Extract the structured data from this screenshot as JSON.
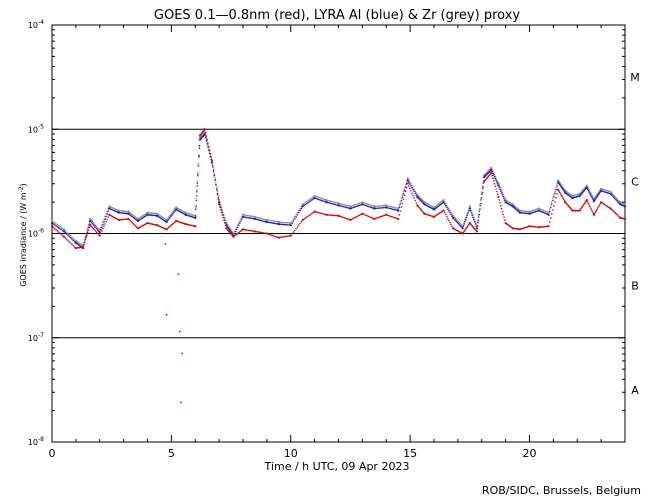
{
  "chart_data": {
    "type": "scatter",
    "title": "GOES 0.1—0.8nm (red), LYRA Al (blue) & Zr (grey) proxy",
    "xlabel": "Time / h UTC, 09 Apr 2023",
    "ylabel_parts": [
      "GOES irradiance / (W m",
      "-2",
      ")"
    ],
    "credit": "ROB/SIDC, Brussels, Belgium",
    "xlim": [
      0,
      24
    ],
    "ylim_log10": [
      -8,
      -4
    ],
    "x_ticks": [
      {
        "value": 0,
        "label": "0"
      },
      {
        "value": 5,
        "label": "5"
      },
      {
        "value": 10,
        "label": "10"
      },
      {
        "value": 15,
        "label": "15"
      },
      {
        "value": 20,
        "label": "20"
      }
    ],
    "y_ticks": [
      {
        "exp": -8,
        "base": "10",
        "sup": "-8"
      },
      {
        "exp": -7,
        "base": "10",
        "sup": "-7"
      },
      {
        "exp": -6,
        "base": "10",
        "sup": "-6"
      },
      {
        "exp": -5,
        "base": "10",
        "sup": "-5"
      },
      {
        "exp": -4,
        "base": "10",
        "sup": "-4"
      }
    ],
    "flare_class_lines": [
      -7,
      -6,
      -5
    ],
    "flare_classes": [
      {
        "label": "A",
        "center_exp": -7.5
      },
      {
        "label": "B",
        "center_exp": -6.5
      },
      {
        "label": "C",
        "center_exp": -5.5
      },
      {
        "label": "M",
        "center_exp": -4.5
      }
    ],
    "series": [
      {
        "name": "LYRA Zr proxy",
        "color": "#8c8c8c",
        "x": [
          0,
          0.5,
          1.0,
          1.3,
          1.6,
          2.0,
          2.4,
          2.8,
          3.2,
          3.6,
          4.0,
          4.4,
          4.8,
          5.2,
          5.6,
          6.0,
          6.2,
          6.4,
          6.7,
          7.0,
          7.3,
          7.6,
          8.0,
          8.5,
          9.0,
          9.5,
          10.0,
          10.5,
          11.0,
          11.5,
          12.0,
          12.5,
          13.0,
          13.5,
          14.0,
          14.5,
          14.9,
          15.3,
          15.6,
          16.0,
          16.4,
          16.8,
          17.2,
          17.5,
          17.8,
          18.1,
          18.4,
          18.7,
          19.0,
          19.3,
          19.6,
          20.0,
          20.4,
          20.8,
          21.2,
          21.5,
          21.8,
          22.1,
          22.4,
          22.7,
          23.0,
          23.4,
          23.8,
          24.0
        ],
        "log10": [
          -5.88,
          -5.96,
          -6.07,
          -6.12,
          -5.86,
          -5.97,
          -5.74,
          -5.78,
          -5.79,
          -5.86,
          -5.8,
          -5.81,
          -5.87,
          -5.75,
          -5.8,
          -5.83,
          -5.08,
          -5.03,
          -5.3,
          -5.68,
          -5.9,
          -6.0,
          -5.82,
          -5.84,
          -5.87,
          -5.89,
          -5.9,
          -5.72,
          -5.64,
          -5.68,
          -5.71,
          -5.74,
          -5.7,
          -5.74,
          -5.73,
          -5.76,
          -5.47,
          -5.63,
          -5.7,
          -5.75,
          -5.68,
          -5.83,
          -5.93,
          -5.74,
          -5.93,
          -5.44,
          -5.37,
          -5.52,
          -5.68,
          -5.72,
          -5.78,
          -5.79,
          -5.76,
          -5.8,
          -5.49,
          -5.59,
          -5.64,
          -5.62,
          -5.54,
          -5.67,
          -5.57,
          -5.6,
          -5.7,
          -5.72
        ]
      },
      {
        "name": "LYRA Al proxy",
        "color": "#1a1acc",
        "x": [
          0,
          0.5,
          1.0,
          1.3,
          1.6,
          2.0,
          2.4,
          2.8,
          3.2,
          3.6,
          4.0,
          4.4,
          4.8,
          5.2,
          5.6,
          6.0,
          6.2,
          6.4,
          6.7,
          7.0,
          7.3,
          7.6,
          8.0,
          8.5,
          9.0,
          9.5,
          10.0,
          10.5,
          11.0,
          11.5,
          12.0,
          12.5,
          13.0,
          13.5,
          14.0,
          14.5,
          14.9,
          15.3,
          15.6,
          16.0,
          16.4,
          16.8,
          17.2,
          17.5,
          17.8,
          18.1,
          18.4,
          18.7,
          19.0,
          19.3,
          19.6,
          20.0,
          20.4,
          20.8,
          21.2,
          21.5,
          21.8,
          22.1,
          22.4,
          22.7,
          23.0,
          23.4,
          23.8,
          24.0
        ],
        "log10": [
          -5.9,
          -5.98,
          -6.09,
          -6.14,
          -5.88,
          -5.99,
          -5.76,
          -5.8,
          -5.81,
          -5.88,
          -5.82,
          -5.83,
          -5.89,
          -5.77,
          -5.82,
          -5.85,
          -5.1,
          -5.05,
          -5.32,
          -5.7,
          -5.92,
          -6.02,
          -5.84,
          -5.86,
          -5.89,
          -5.91,
          -5.92,
          -5.74,
          -5.66,
          -5.7,
          -5.73,
          -5.76,
          -5.72,
          -5.76,
          -5.75,
          -5.78,
          -5.49,
          -5.65,
          -5.72,
          -5.77,
          -5.7,
          -5.85,
          -5.95,
          -5.76,
          -5.95,
          -5.46,
          -5.39,
          -5.54,
          -5.7,
          -5.74,
          -5.8,
          -5.81,
          -5.78,
          -5.82,
          -5.51,
          -5.61,
          -5.66,
          -5.64,
          -5.56,
          -5.69,
          -5.59,
          -5.62,
          -5.72,
          -5.74
        ]
      },
      {
        "name": "GOES 0.1-0.8nm",
        "color": "#dd0000",
        "x": [
          0,
          0.5,
          1.0,
          1.3,
          1.6,
          2.0,
          2.4,
          2.8,
          3.2,
          3.6,
          4.0,
          4.4,
          4.8,
          5.2,
          5.6,
          6.0,
          6.2,
          6.4,
          6.7,
          7.0,
          7.3,
          7.6,
          8.0,
          8.5,
          9.0,
          9.5,
          10.0,
          10.5,
          11.0,
          11.5,
          12.0,
          12.5,
          13.0,
          13.5,
          14.0,
          14.5,
          14.9,
          15.3,
          15.6,
          16.0,
          16.4,
          16.8,
          17.2,
          17.5,
          17.8,
          18.1,
          18.4,
          18.7,
          19.0,
          19.3,
          19.6,
          20.0,
          20.4,
          20.8,
          21.2,
          21.5,
          21.8,
          22.1,
          22.4,
          22.7,
          23.0,
          23.4,
          23.8,
          24.0
        ],
        "log10": [
          -5.93,
          -6.03,
          -6.14,
          -6.13,
          -5.92,
          -6.02,
          -5.82,
          -5.87,
          -5.86,
          -5.95,
          -5.9,
          -5.92,
          -5.96,
          -5.88,
          -5.91,
          -5.93,
          -5.06,
          -5.0,
          -5.3,
          -5.72,
          -5.95,
          -6.03,
          -5.96,
          -5.98,
          -6.0,
          -6.04,
          -6.02,
          -5.87,
          -5.79,
          -5.82,
          -5.83,
          -5.87,
          -5.81,
          -5.86,
          -5.82,
          -5.86,
          -5.52,
          -5.73,
          -5.81,
          -5.84,
          -5.78,
          -5.95,
          -6.0,
          -5.9,
          -5.98,
          -5.5,
          -5.42,
          -5.65,
          -5.9,
          -5.95,
          -5.96,
          -5.93,
          -5.94,
          -5.93,
          -5.58,
          -5.7,
          -5.78,
          -5.78,
          -5.68,
          -5.82,
          -5.7,
          -5.76,
          -5.85,
          -5.86
        ]
      }
    ],
    "outliers": {
      "name": "GOES dropouts",
      "color": "#dd0000",
      "x": [
        4.75,
        4.8,
        5.3,
        5.35,
        5.4,
        5.45
      ],
      "log10": [
        -6.1,
        -6.78,
        -6.39,
        -6.94,
        -7.62,
        -7.15
      ]
    }
  }
}
